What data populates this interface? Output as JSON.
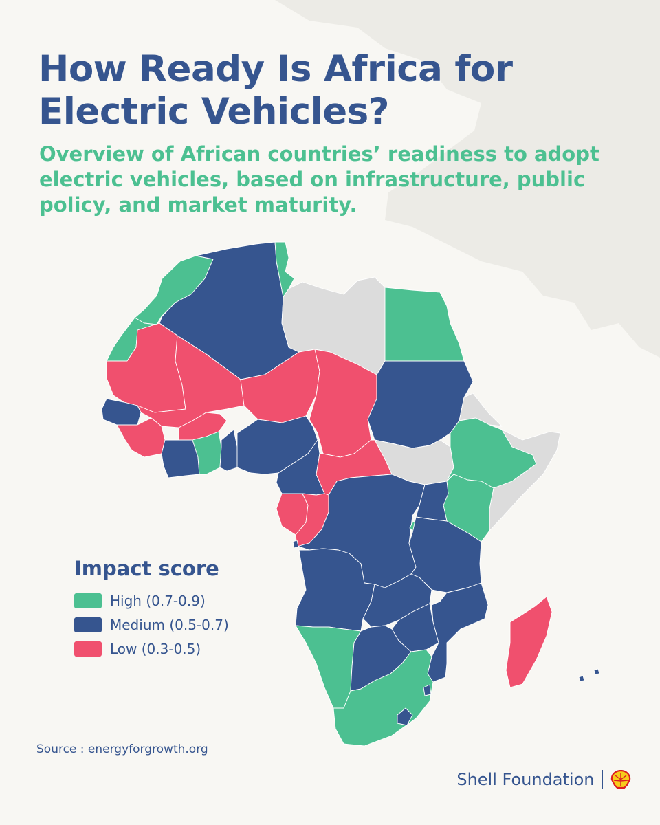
{
  "title": "How Ready Is Africa for Electric Vehicles?",
  "subtitle": "Overview of African countries’ readiness to adopt electric vehicles, based on infrastructure, public policy, and market maturity.",
  "legend": {
    "title": "Impact score",
    "items": [
      {
        "label": "High (0.7-0.9)",
        "color": "#4cc091"
      },
      {
        "label": "Medium (0.5-0.7)",
        "color": "#36558f"
      },
      {
        "label": "Low (0.3-0.5)",
        "color": "#f0506e"
      }
    ]
  },
  "no_data_color": "#dcdcdc",
  "source": "Source : energyforgrowth.org",
  "brand": {
    "name": "Shell Foundation",
    "logo_icon": "shell-logo-icon"
  },
  "map": {
    "countries": [
      {
        "name": "Morocco",
        "level": "high"
      },
      {
        "name": "Western Sahara",
        "level": "high"
      },
      {
        "name": "Algeria",
        "level": "medium"
      },
      {
        "name": "Tunisia",
        "level": "high"
      },
      {
        "name": "Libya",
        "level": "none"
      },
      {
        "name": "Egypt",
        "level": "high"
      },
      {
        "name": "Mauritania",
        "level": "low"
      },
      {
        "name": "Mali",
        "level": "low"
      },
      {
        "name": "Niger",
        "level": "low"
      },
      {
        "name": "Chad",
        "level": "low"
      },
      {
        "name": "Sudan",
        "level": "medium"
      },
      {
        "name": "South Sudan",
        "level": "none"
      },
      {
        "name": "Eritrea",
        "level": "none"
      },
      {
        "name": "Ethiopia",
        "level": "high"
      },
      {
        "name": "Somalia",
        "level": "none"
      },
      {
        "name": "Kenya",
        "level": "high"
      },
      {
        "name": "Senegal",
        "level": "medium"
      },
      {
        "name": "Guinea",
        "level": "low"
      },
      {
        "name": "Burkina Faso",
        "level": "low"
      },
      {
        "name": "Côte d'Ivoire",
        "level": "medium"
      },
      {
        "name": "Ghana",
        "level": "high"
      },
      {
        "name": "Benin",
        "level": "medium"
      },
      {
        "name": "Nigeria",
        "level": "medium"
      },
      {
        "name": "Cameroon",
        "level": "medium"
      },
      {
        "name": "Central African Republic",
        "level": "low"
      },
      {
        "name": "Gabon",
        "level": "low"
      },
      {
        "name": "Congo",
        "level": "low"
      },
      {
        "name": "DR Congo",
        "level": "medium"
      },
      {
        "name": "Uganda",
        "level": "medium"
      },
      {
        "name": "Rwanda",
        "level": "high"
      },
      {
        "name": "Tanzania",
        "level": "medium"
      },
      {
        "name": "Angola",
        "level": "medium"
      },
      {
        "name": "Zambia",
        "level": "medium"
      },
      {
        "name": "Mozambique",
        "level": "medium"
      },
      {
        "name": "Zimbabwe",
        "level": "medium"
      },
      {
        "name": "Namibia",
        "level": "high"
      },
      {
        "name": "Botswana",
        "level": "medium"
      },
      {
        "name": "South Africa",
        "level": "high"
      },
      {
        "name": "Eswatini",
        "level": "medium"
      },
      {
        "name": "Lesotho",
        "level": "medium"
      },
      {
        "name": "Madagascar",
        "level": "low"
      }
    ]
  }
}
